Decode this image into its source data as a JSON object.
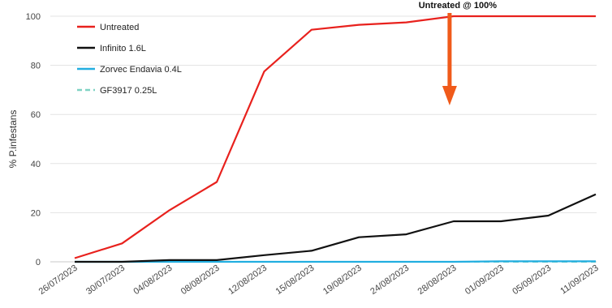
{
  "chart_data": {
    "type": "line",
    "title": "",
    "xlabel": "",
    "ylabel": "% P.infestans",
    "ylim": [
      0,
      100
    ],
    "yticks": [
      0,
      20,
      40,
      60,
      80,
      100
    ],
    "grid": true,
    "legend_placement": "top-left",
    "categories": [
      "26/07/2023",
      "30/07/2023",
      "04/08/2023",
      "08/08/2023",
      "12/08/2023",
      "15/08/2023",
      "19/08/2023",
      "24/08/2023",
      "28/08/2023",
      "01/09/2023",
      "05/09/2023",
      "11/09/2023"
    ],
    "series": [
      {
        "name": "Untreated",
        "color": "#e8211d",
        "dash": false,
        "values": [
          1.5,
          7.5,
          21,
          32.5,
          77.5,
          94.5,
          96.5,
          97.5,
          100,
          100,
          100,
          100
        ]
      },
      {
        "name": "Infinito 1.6L",
        "color": "#111111",
        "dash": false,
        "values": [
          0,
          0,
          0.7,
          0.7,
          2.7,
          4.5,
          10,
          11.2,
          16.5,
          16.5,
          18.8,
          27.5
        ]
      },
      {
        "name": "Zorvec Endavia 0.4L",
        "color": "#22aee0",
        "dash": false,
        "values": [
          0,
          0,
          0,
          0,
          0,
          0,
          0,
          0,
          0,
          0.2,
          0.2,
          0.2
        ]
      },
      {
        "name": "GF3917 0.25L",
        "color": "#7fd3c4",
        "dash": true,
        "values": [
          0,
          0,
          0,
          0,
          0,
          0,
          0,
          0,
          0,
          0,
          0,
          0
        ]
      }
    ],
    "annotations": [
      {
        "text": "Untreated @ 100%",
        "at_category": "28/08/2023",
        "arrow": "down",
        "color": "#f05a1a"
      }
    ]
  }
}
